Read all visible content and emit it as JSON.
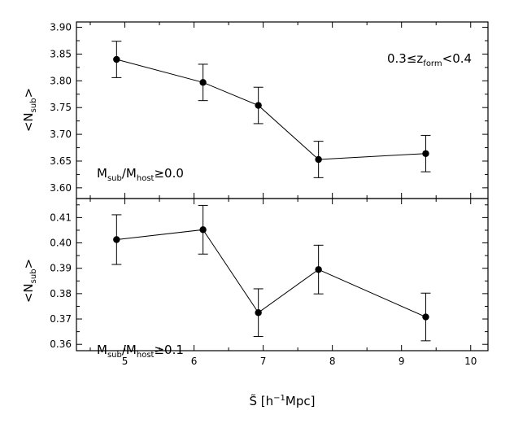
{
  "chart_data": [
    {
      "type": "scatter",
      "panel": "top",
      "x": [
        4.88,
        6.13,
        6.93,
        7.8,
        9.35
      ],
      "y": [
        3.84,
        3.797,
        3.754,
        3.653,
        3.664
      ],
      "yerr": [
        0.034,
        0.034,
        0.034,
        0.034,
        0.034
      ],
      "xlim": [
        4.3,
        10.25
      ],
      "ylim": [
        3.58,
        3.91
      ],
      "xticks": [
        5,
        6,
        7,
        8,
        9,
        10
      ],
      "yticks": [
        3.6,
        3.65,
        3.7,
        3.75,
        3.8,
        3.85,
        3.9
      ],
      "ytick_labels": [
        "3.60",
        "3.65",
        "3.70",
        "3.75",
        "3.80",
        "3.85",
        "3.90"
      ],
      "ylabel": {
        "main": "<N",
        "sub": "sub",
        "end": ">"
      },
      "annotations": {
        "redshift": {
          "prefix": "0.3≤z",
          "sub": "form",
          "suffix": "<0.4"
        },
        "mass_ratio": {
          "m1": "M",
          "s1": "sub",
          "mid": "/M",
          "s2": "host",
          "end": "≥0.0"
        }
      },
      "line": true,
      "marker": "circle",
      "color": "#000000"
    },
    {
      "type": "scatter",
      "panel": "bottom",
      "x": [
        4.88,
        6.13,
        6.93,
        7.8,
        9.35
      ],
      "y": [
        0.4013,
        0.4052,
        0.3725,
        0.3895,
        0.3708
      ],
      "yerr": [
        0.0098,
        0.0096,
        0.0094,
        0.0096,
        0.0094
      ],
      "xlim": [
        4.3,
        10.25
      ],
      "ylim": [
        0.3575,
        0.4175
      ],
      "xticks": [
        5,
        6,
        7,
        8,
        9,
        10
      ],
      "yticks": [
        0.36,
        0.37,
        0.38,
        0.39,
        0.4,
        0.41
      ],
      "ytick_labels": [
        "0.36",
        "0.37",
        "0.38",
        "0.39",
        "0.40",
        "0.41"
      ],
      "ylabel": {
        "main": "<N",
        "sub": "sub",
        "end": ">"
      },
      "annotations": {
        "mass_ratio": {
          "m1": "M",
          "s1": "sub",
          "mid": "/M",
          "s2": "host",
          "end": "≥0.1"
        }
      },
      "line": true,
      "marker": "circle",
      "color": "#000000"
    }
  ],
  "xaxis": {
    "tick_labels": [
      "5",
      "6",
      "7",
      "8",
      "9",
      "10"
    ],
    "label": {
      "main": "S̃ [h",
      "sup": "−1",
      "end": "Mpc]"
    }
  }
}
